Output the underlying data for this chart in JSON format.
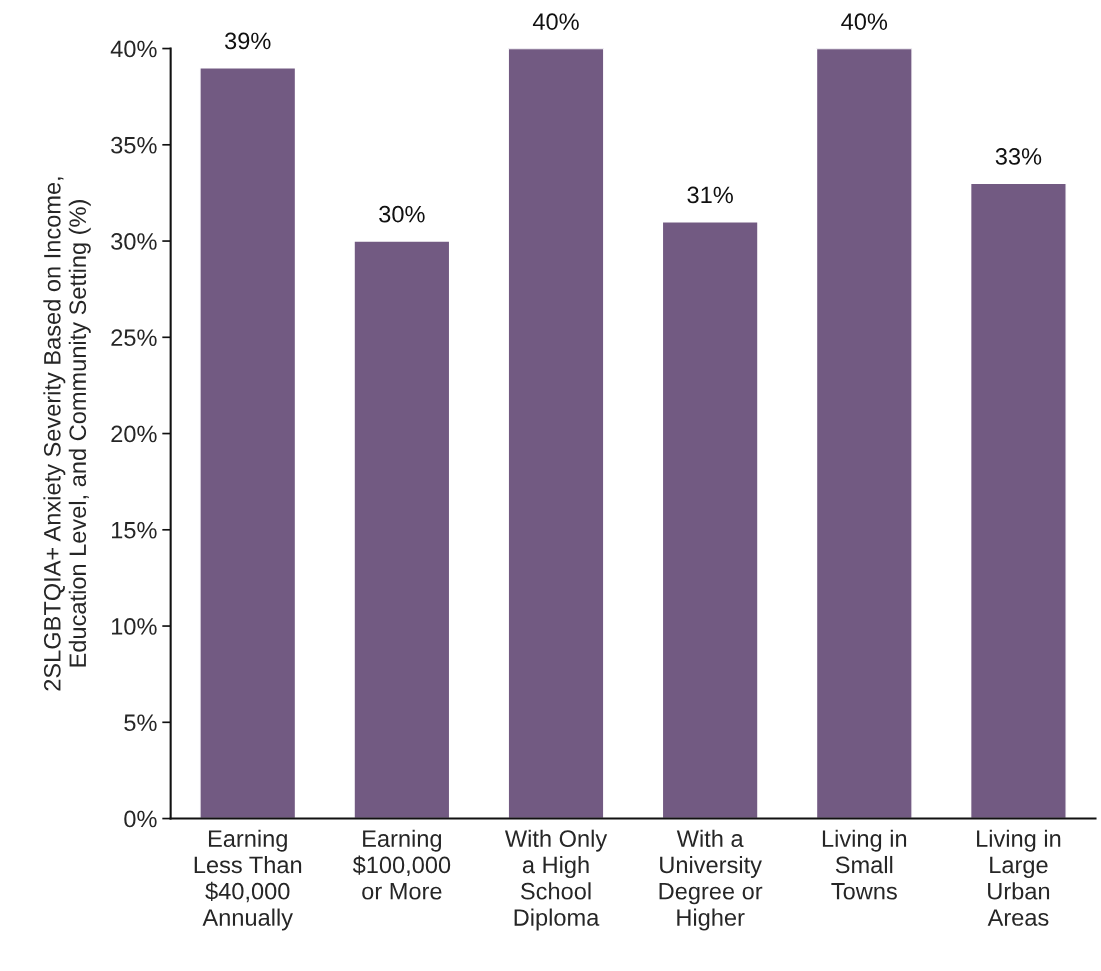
{
  "chart_data": {
    "type": "bar",
    "ylabel": "2SLGBTQIA+ Anxiety Severity Based on Income,\nEducation Level, and Community Setting (%)",
    "categories": [
      "Earning\nLess Than\n$40,000\nAnnually",
      "Earning\n$100,000\nor More",
      "With Only\na High\nSchool\nDiploma",
      "With a\nUniversity\nDegree or\nHigher",
      "Living in\nSmall\nTowns",
      "Living in\nLarge\nUrban\nAreas"
    ],
    "values": [
      39,
      30,
      40,
      31,
      40,
      33
    ],
    "colors": [
      "#725a82",
      "#725a82",
      "#725a82",
      "#725a82",
      "#725a82",
      "#725a82"
    ],
    "value_labels": [
      "39%",
      "30%",
      "40%",
      "31%",
      "40%",
      "33%"
    ],
    "ylim": [
      0,
      40
    ],
    "yticks": [
      {
        "value": 0,
        "label": "0%"
      },
      {
        "value": 5,
        "label": "5%"
      },
      {
        "value": 10,
        "label": "10%"
      },
      {
        "value": 15,
        "label": "15%"
      },
      {
        "value": 20,
        "label": "20%"
      },
      {
        "value": 25,
        "label": "25%"
      },
      {
        "value": 30,
        "label": "30%"
      },
      {
        "value": 35,
        "label": "35%"
      },
      {
        "value": 40,
        "label": "40%"
      }
    ],
    "grid": false,
    "legend": false
  }
}
